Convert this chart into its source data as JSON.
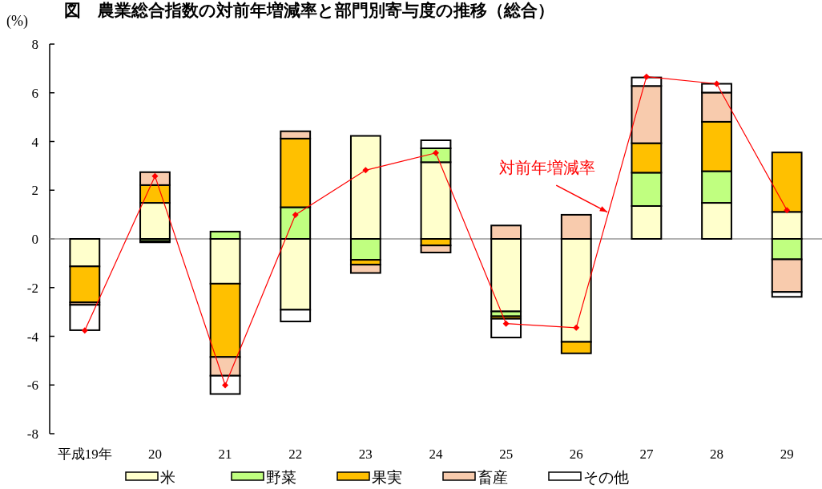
{
  "chart_data": {
    "type": "bar",
    "stacked": true,
    "title": "図　農業総合指数の対前年増減率と部門別寄与度の推移（総合）",
    "ylabel": "(%)",
    "categories": [
      "平成19年",
      "20",
      "21",
      "22",
      "23",
      "24",
      "25",
      "26",
      "27",
      "28",
      "29"
    ],
    "ylim": [
      -8,
      8
    ],
    "yticks": [
      -8,
      -6,
      -4,
      -2,
      0,
      2,
      4,
      6,
      8
    ],
    "grid": false,
    "legend": "bottom",
    "ref_lines": [
      {
        "axis": "y",
        "value": 0,
        "color": "#999999"
      }
    ],
    "series": [
      {
        "name": "米",
        "color": "#ffffcc",
        "values": [
          -1.13,
          1.48,
          -1.84,
          -2.91,
          4.23,
          3.15,
          -2.98,
          -4.23,
          1.35,
          1.48,
          1.11
        ]
      },
      {
        "name": "野菜",
        "color": "#c0ff80",
        "values": [
          0,
          -0.09,
          0.3,
          1.3,
          -0.86,
          0.57,
          -0.2,
          0,
          1.37,
          1.3,
          -0.84
        ]
      },
      {
        "name": "果実",
        "color": "#ffc000",
        "values": [
          -1.48,
          0.73,
          -3.01,
          2.82,
          -0.2,
          -0.27,
          -0.1,
          -0.47,
          1.21,
          2.03,
          2.44
        ]
      },
      {
        "name": "畜産",
        "color": "#f8cbad",
        "values": [
          -0.1,
          0.53,
          -0.77,
          0.3,
          -0.34,
          -0.29,
          0.55,
          0.99,
          2.35,
          1.2,
          -1.34
        ]
      },
      {
        "name": "その他",
        "color": "#ffffff",
        "values": [
          -1.04,
          -0.05,
          -0.75,
          -0.48,
          0,
          0.33,
          -0.77,
          0,
          0.35,
          0.36,
          -0.2
        ]
      },
      {
        "name": "対前年増減率",
        "type": "line",
        "color": "#ff0000",
        "marker": "diamond",
        "values": [
          -3.76,
          2.58,
          -6.01,
          0.99,
          2.82,
          3.53,
          -3.48,
          -3.65,
          6.66,
          6.37,
          1.18
        ]
      }
    ]
  }
}
